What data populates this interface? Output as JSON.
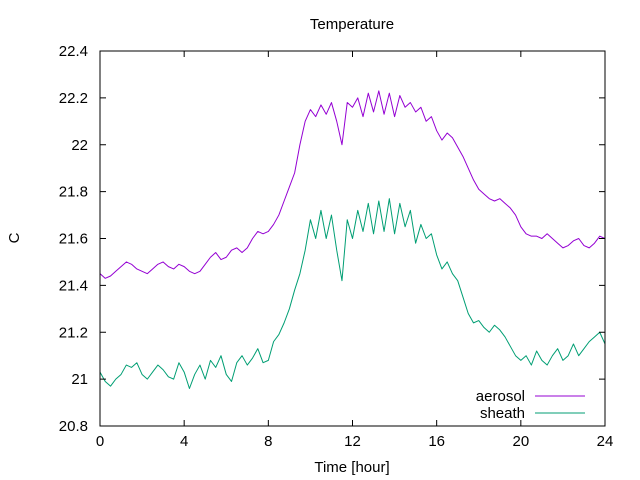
{
  "chart_data": {
    "type": "line",
    "title": "Temperature",
    "xlabel": "Time [hour]",
    "ylabel": "C",
    "xlim": [
      0,
      24
    ],
    "ylim": [
      20.8,
      22.4
    ],
    "x_ticks": [
      0,
      4,
      8,
      12,
      16,
      20,
      24
    ],
    "x_tick_labels": [
      "0",
      "4",
      "8",
      "12",
      "16",
      "20",
      "24"
    ],
    "y_ticks": [
      20.8,
      21,
      21.2,
      21.4,
      21.6,
      21.8,
      22,
      22.2,
      22.4
    ],
    "y_tick_labels": [
      "20.8",
      "21",
      "21.2",
      "21.4",
      "21.6",
      "21.8",
      "22",
      "22.2",
      "22.4"
    ],
    "grid": false,
    "legend_position": "bottom-right",
    "series": [
      {
        "name": "aerosol",
        "color": "#9400d3",
        "x": [
          0,
          0.25,
          0.5,
          0.75,
          1,
          1.25,
          1.5,
          1.75,
          2,
          2.25,
          2.5,
          2.75,
          3,
          3.25,
          3.5,
          3.75,
          4,
          4.25,
          4.5,
          4.75,
          5,
          5.25,
          5.5,
          5.75,
          6,
          6.25,
          6.5,
          6.75,
          7,
          7.25,
          7.5,
          7.75,
          8,
          8.25,
          8.5,
          8.75,
          9,
          9.25,
          9.5,
          9.75,
          10,
          10.25,
          10.5,
          10.75,
          11,
          11.25,
          11.5,
          11.75,
          12,
          12.25,
          12.5,
          12.75,
          13,
          13.25,
          13.5,
          13.75,
          14,
          14.25,
          14.5,
          14.75,
          15,
          15.25,
          15.5,
          15.75,
          16,
          16.25,
          16.5,
          16.75,
          17,
          17.25,
          17.5,
          17.75,
          18,
          18.25,
          18.5,
          18.75,
          19,
          19.25,
          19.5,
          19.75,
          20,
          20.25,
          20.5,
          20.75,
          21,
          21.25,
          21.5,
          21.75,
          22,
          22.25,
          22.5,
          22.75,
          23,
          23.25,
          23.5,
          23.75,
          24
        ],
        "values": [
          21.45,
          21.43,
          21.44,
          21.46,
          21.48,
          21.5,
          21.49,
          21.47,
          21.46,
          21.45,
          21.47,
          21.49,
          21.5,
          21.48,
          21.47,
          21.49,
          21.48,
          21.46,
          21.45,
          21.46,
          21.49,
          21.52,
          21.54,
          21.51,
          21.52,
          21.55,
          21.56,
          21.54,
          21.56,
          21.6,
          21.63,
          21.62,
          21.63,
          21.66,
          21.7,
          21.76,
          21.82,
          21.88,
          22.0,
          22.1,
          22.15,
          22.12,
          22.17,
          22.13,
          22.18,
          22.1,
          22.0,
          22.18,
          22.16,
          22.2,
          22.12,
          22.22,
          22.14,
          22.23,
          22.13,
          22.22,
          22.12,
          22.21,
          22.16,
          22.18,
          22.14,
          22.16,
          22.1,
          22.12,
          22.06,
          22.02,
          22.05,
          22.03,
          21.99,
          21.95,
          21.9,
          21.85,
          21.81,
          21.79,
          21.77,
          21.76,
          21.77,
          21.75,
          21.73,
          21.7,
          21.65,
          21.62,
          21.61,
          21.61,
          21.6,
          21.62,
          21.6,
          21.58,
          21.56,
          21.57,
          21.59,
          21.6,
          21.57,
          21.56,
          21.58,
          21.61,
          21.6
        ],
        "lw": 1
      },
      {
        "name": "sheath",
        "color": "#009e73",
        "x": [
          0,
          0.25,
          0.5,
          0.75,
          1,
          1.25,
          1.5,
          1.75,
          2,
          2.25,
          2.5,
          2.75,
          3,
          3.25,
          3.5,
          3.75,
          4,
          4.25,
          4.5,
          4.75,
          5,
          5.25,
          5.5,
          5.75,
          6,
          6.25,
          6.5,
          6.75,
          7,
          7.25,
          7.5,
          7.75,
          8,
          8.25,
          8.5,
          8.75,
          9,
          9.25,
          9.5,
          9.75,
          10,
          10.25,
          10.5,
          10.75,
          11,
          11.25,
          11.5,
          11.75,
          12,
          12.25,
          12.5,
          12.75,
          13,
          13.25,
          13.5,
          13.75,
          14,
          14.25,
          14.5,
          14.75,
          15,
          15.25,
          15.5,
          15.75,
          16,
          16.25,
          16.5,
          16.75,
          17,
          17.25,
          17.5,
          17.75,
          18,
          18.25,
          18.5,
          18.75,
          19,
          19.25,
          19.5,
          19.75,
          20,
          20.25,
          20.5,
          20.75,
          21,
          21.25,
          21.5,
          21.75,
          22,
          22.25,
          22.5,
          22.75,
          23,
          23.25,
          23.5,
          23.75,
          24
        ],
        "values": [
          21.03,
          20.99,
          20.97,
          21.0,
          21.02,
          21.06,
          21.05,
          21.07,
          21.02,
          21.0,
          21.03,
          21.06,
          21.04,
          21.01,
          21.0,
          21.07,
          21.03,
          20.96,
          21.02,
          21.06,
          21.0,
          21.08,
          21.05,
          21.1,
          21.02,
          20.99,
          21.07,
          21.1,
          21.06,
          21.09,
          21.13,
          21.07,
          21.08,
          21.16,
          21.19,
          21.24,
          21.3,
          21.38,
          21.45,
          21.55,
          21.68,
          21.6,
          21.72,
          21.6,
          21.7,
          21.55,
          21.42,
          21.68,
          21.6,
          21.72,
          21.63,
          21.75,
          21.62,
          21.76,
          21.63,
          21.77,
          21.62,
          21.75,
          21.65,
          21.72,
          21.58,
          21.66,
          21.6,
          21.62,
          21.53,
          21.47,
          21.5,
          21.45,
          21.42,
          21.35,
          21.28,
          21.24,
          21.25,
          21.22,
          21.2,
          21.23,
          21.21,
          21.18,
          21.14,
          21.1,
          21.08,
          21.1,
          21.06,
          21.12,
          21.08,
          21.06,
          21.1,
          21.13,
          21.08,
          21.1,
          21.15,
          21.1,
          21.13,
          21.16,
          21.18,
          21.2,
          21.15
        ],
        "lw": 1
      }
    ]
  }
}
